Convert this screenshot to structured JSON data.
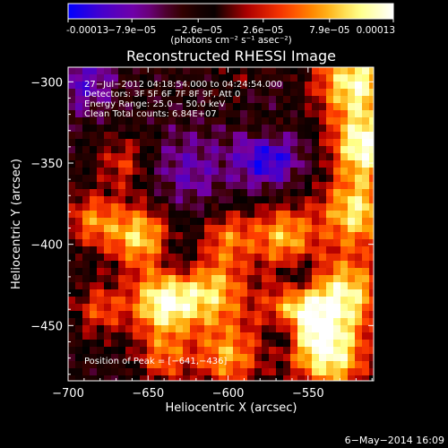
{
  "colorbar": {
    "tick_labels": [
      "-0.00013",
      "−7.9e−05",
      "−2.6e−05",
      "2.6e−05",
      "7.9e−05",
      "0.00013"
    ],
    "tick_values": [
      -0.00013,
      -7.9e-05,
      -2.6e-05,
      2.6e-05,
      7.9e-05,
      0.00013
    ],
    "range": [
      -0.00013,
      0.00013
    ],
    "units_label": "(photons cm⁻² s⁻¹ asec⁻²)"
  },
  "chart_data": {
    "type": "heatmap",
    "title": "Reconstructed RHESSI Image",
    "xlabel": "Heliocentric X (arcsec)",
    "ylabel": "Heliocentric Y (arcsec)",
    "xlim": [
      -700,
      -509
    ],
    "ylim": [
      -484,
      -291
    ],
    "x_ticks": [
      -700,
      -650,
      -600,
      -550
    ],
    "x_tick_labels": [
      "−700",
      "−650",
      "−600",
      "−550"
    ],
    "y_ticks": [
      -300,
      -350,
      -400,
      -450
    ],
    "y_tick_labels": [
      "−300",
      "−350",
      "−400",
      "−450"
    ],
    "colormap": [
      "#0000ff",
      "#4b00c8",
      "#7800a0",
      "#3c0000",
      "#000000",
      "#b40000",
      "#ff3c00",
      "#ffa000",
      "#ffff80",
      "#ffffff"
    ],
    "annotations": [
      "27−Jul−2012 04:18:54.000 to 04:24:54.000",
      "Detectors: 3F 5F 6F 7F 8F 9F, Att 0",
      "Energy Range: 25.0 − 50.0 keV",
      "Clean    Total counts: 6.84E+07"
    ],
    "peak_label": "Position of Peak = [−641,−436]",
    "peak": [
      -641,
      -436
    ],
    "bright_regions": [
      {
        "x": -641,
        "y": -436,
        "sigma": 14,
        "amp": 1.0
      },
      {
        "x": -655,
        "y": -395,
        "sigma": 14,
        "amp": 0.85
      },
      {
        "x": -665,
        "y": -350,
        "sigma": 12,
        "amp": 0.45
      },
      {
        "x": -610,
        "y": -430,
        "sigma": 16,
        "amp": 0.8
      },
      {
        "x": -600,
        "y": -395,
        "sigma": 12,
        "amp": 0.55
      },
      {
        "x": -565,
        "y": -395,
        "sigma": 14,
        "amp": 0.75
      },
      {
        "x": -555,
        "y": -445,
        "sigma": 16,
        "amp": 0.95
      },
      {
        "x": -520,
        "y": -300,
        "sigma": 18,
        "amp": 1.0
      },
      {
        "x": -515,
        "y": -340,
        "sigma": 14,
        "amp": 1.0
      },
      {
        "x": -520,
        "y": -380,
        "sigma": 16,
        "amp": 0.9
      },
      {
        "x": -525,
        "y": -430,
        "sigma": 16,
        "amp": 0.85
      },
      {
        "x": -535,
        "y": -470,
        "sigma": 16,
        "amp": 0.9
      },
      {
        "x": -685,
        "y": -385,
        "sigma": 12,
        "amp": 0.6
      },
      {
        "x": -680,
        "y": -440,
        "sigma": 12,
        "amp": 0.5
      },
      {
        "x": -600,
        "y": -470,
        "sigma": 14,
        "amp": 0.7
      },
      {
        "x": -640,
        "y": -470,
        "sigma": 12,
        "amp": 0.55
      },
      {
        "x": -585,
        "y": -300,
        "sigma": 12,
        "amp": 0.4
      },
      {
        "x": -575,
        "y": -330,
        "sigma": 10,
        "amp": 0.35
      }
    ],
    "dark_regions": [
      {
        "x": -575,
        "y": -345,
        "sigma": 14,
        "amp": 1.0
      },
      {
        "x": -580,
        "y": -305,
        "sigma": 10,
        "amp": 0.6
      },
      {
        "x": -565,
        "y": -455,
        "sigma": 8,
        "amp": 0.9
      },
      {
        "x": -690,
        "y": -300,
        "sigma": 14,
        "amp": 0.6
      },
      {
        "x": -625,
        "y": -355,
        "sigma": 18,
        "amp": 0.5
      },
      {
        "x": -555,
        "y": -420,
        "sigma": 8,
        "amp": 0.6
      },
      {
        "x": -630,
        "y": -410,
        "sigma": 10,
        "amp": 0.4
      }
    ]
  },
  "footer": {
    "date_label": "6−May−2014 16:09"
  }
}
